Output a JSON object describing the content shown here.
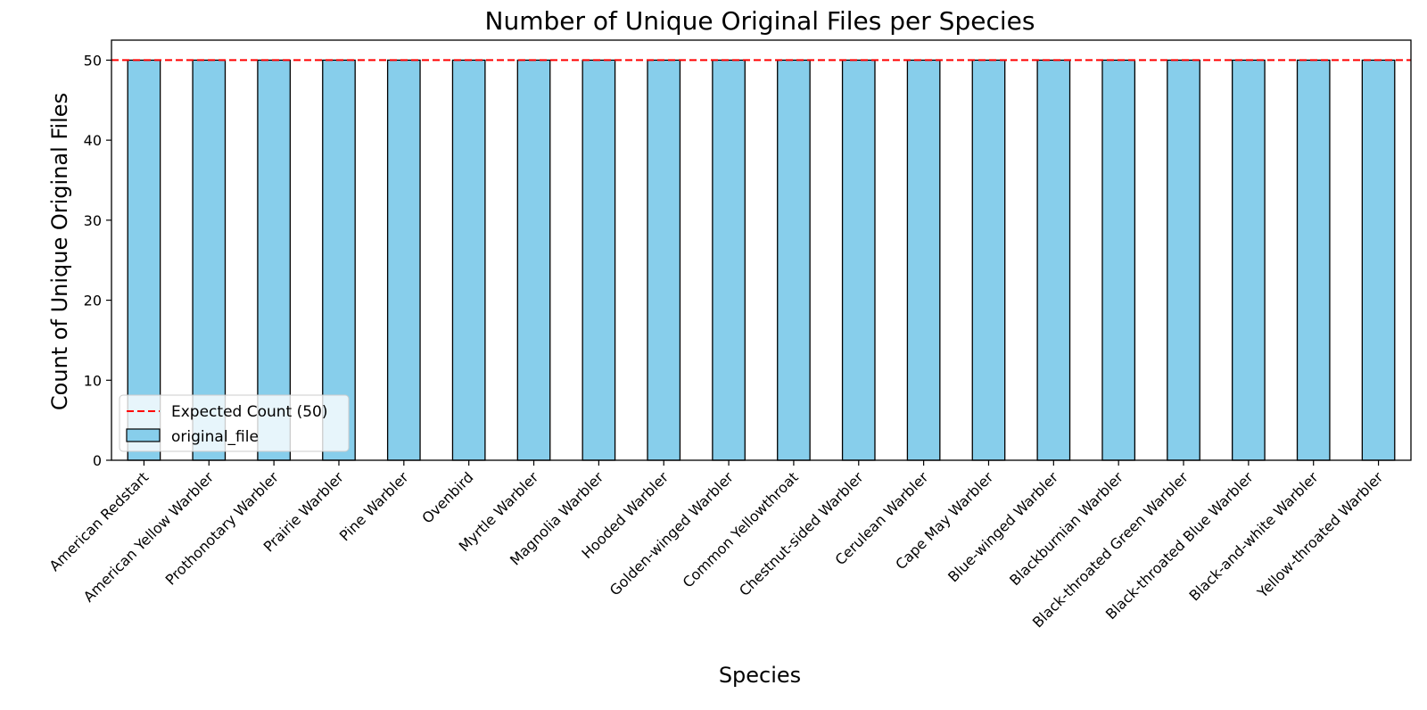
{
  "chart_data": {
    "type": "bar",
    "title": "Number of Unique Original Files per Species",
    "xlabel": "Species",
    "ylabel": "Count of Unique Original Files",
    "ylim": [
      0,
      52.5
    ],
    "yticks": [
      0,
      10,
      20,
      30,
      40,
      50
    ],
    "categories": [
      "American Redstart",
      "American Yellow Warbler",
      "Prothonotary Warbler",
      "Prairie Warbler",
      "Pine Warbler",
      "Ovenbird",
      "Myrtle Warbler",
      "Magnolia Warbler",
      "Hooded Warbler",
      "Golden-winged Warbler",
      "Common Yellowthroat",
      "Chestnut-sided Warbler",
      "Cerulean Warbler",
      "Cape May Warbler",
      "Blue-winged Warbler",
      "Blackburnian Warbler",
      "Black-throated Green Warbler",
      "Black-throated Blue Warbler",
      "Black-and-white Warbler",
      "Yellow-throated Warbler"
    ],
    "series": [
      {
        "name": "original_file",
        "color": "#87ceeb",
        "values": [
          50,
          50,
          50,
          50,
          50,
          50,
          50,
          50,
          50,
          50,
          50,
          50,
          50,
          50,
          50,
          50,
          50,
          50,
          50,
          50
        ]
      }
    ],
    "reference_line": {
      "label": "Expected Count (50)",
      "value": 50,
      "color": "#ff0000",
      "style": "dashed"
    },
    "grid": false,
    "legend_position": "lower-left"
  }
}
